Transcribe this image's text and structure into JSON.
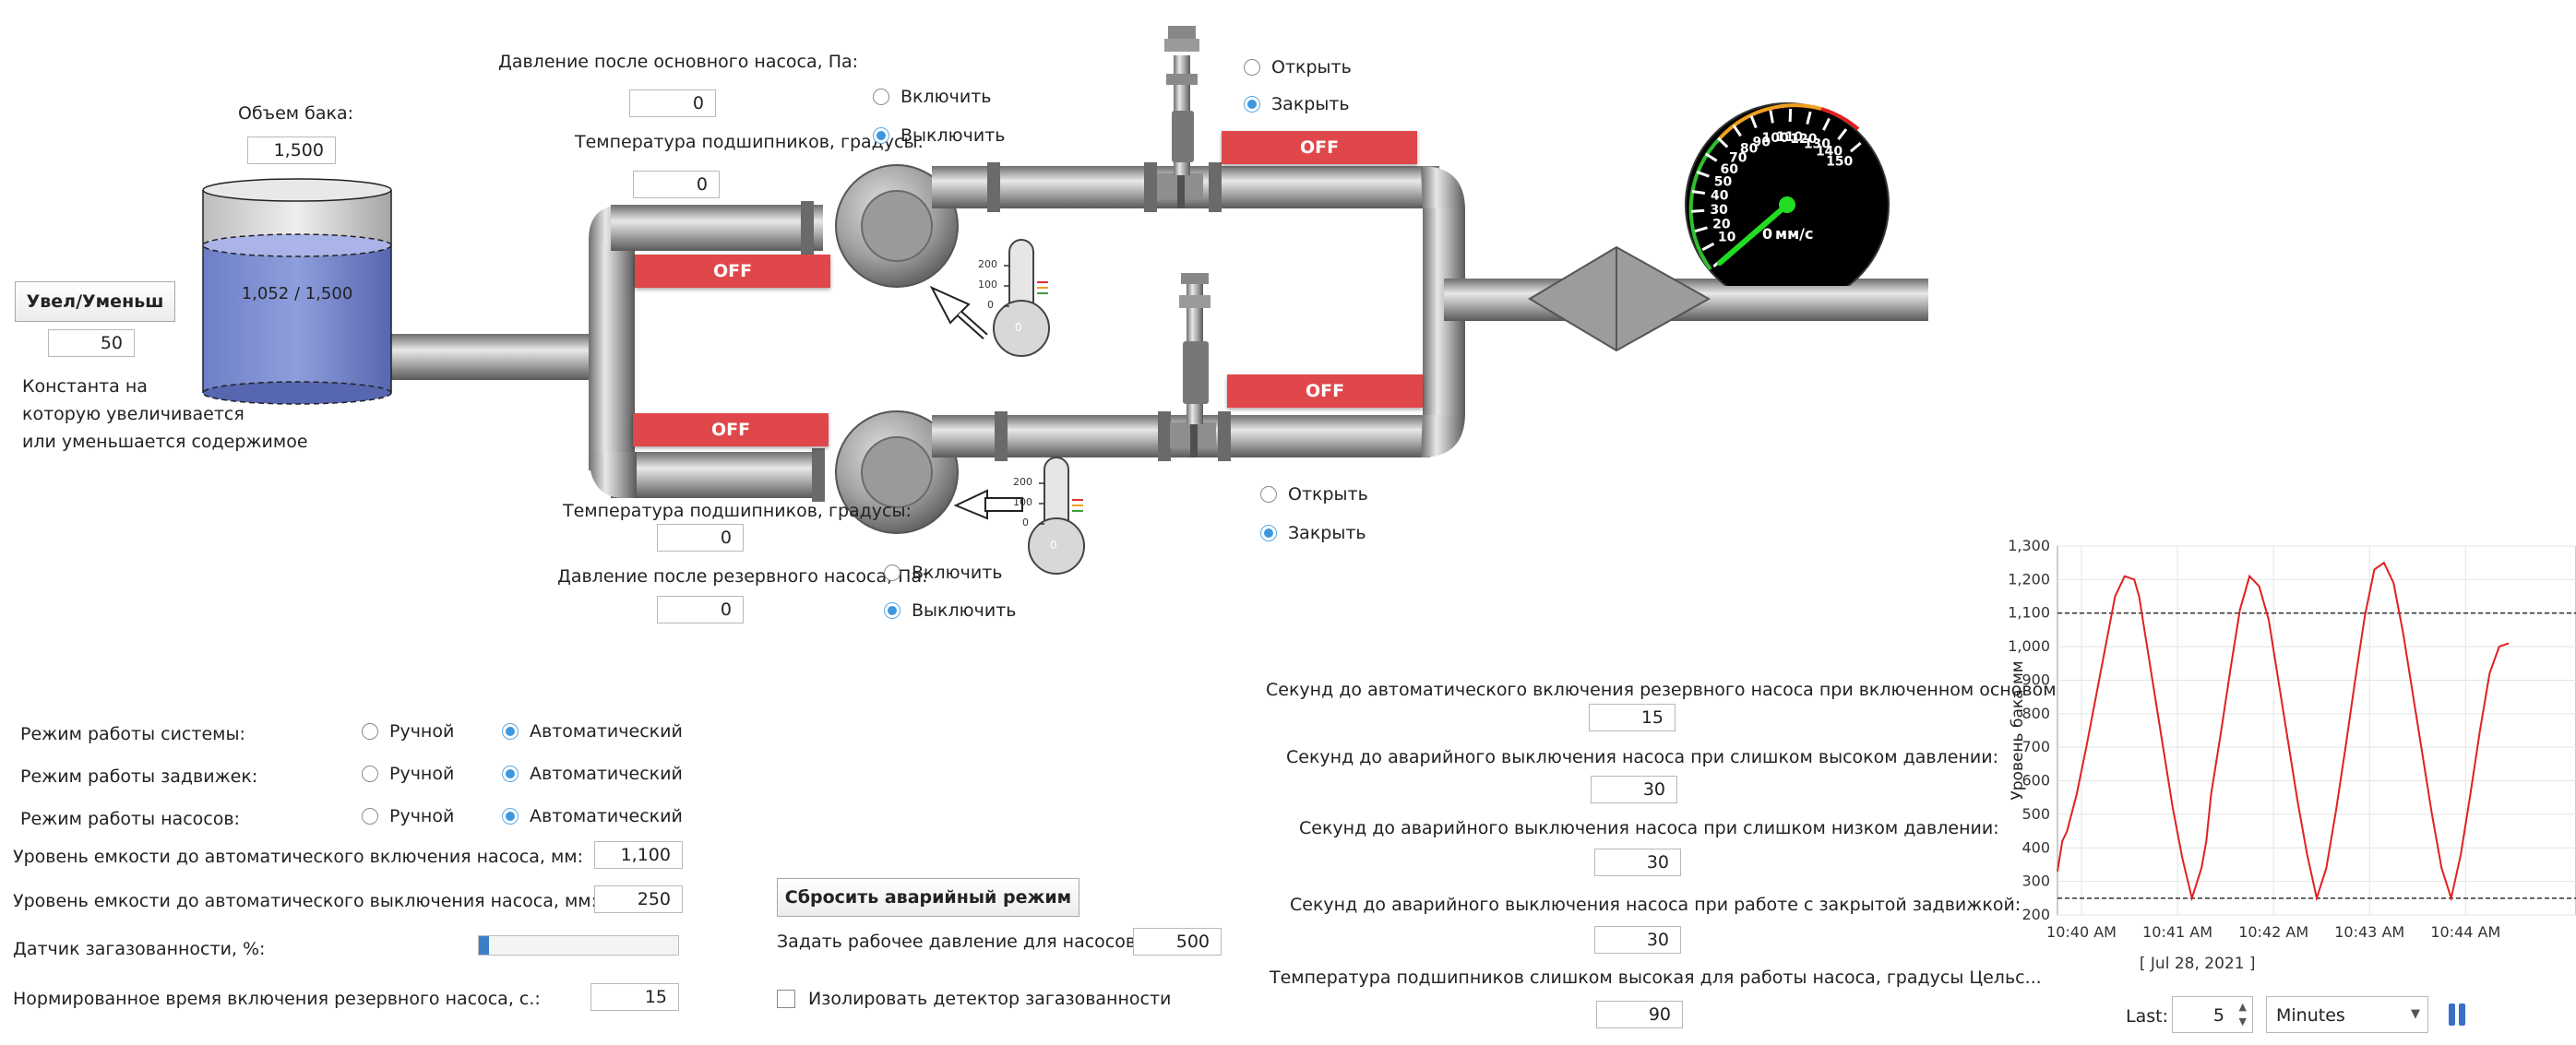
{
  "tank": {
    "volume_label": "Объем бака:",
    "volume_value": "1,500",
    "level_text": "1,052 / 1,500",
    "inc_dec_button": "Увел/Уменьш",
    "step_value": "50",
    "constant_desc_1": "Константа на",
    "constant_desc_2": "которую увеличивается",
    "constant_desc_3": "или уменьшается содержимое",
    "fill_fraction": 0.7
  },
  "main_pump": {
    "pressure_label": "Давление после основного насоса, Па:",
    "pressure_value": "0",
    "bearing_temp_label": "Температура подшипников, градусы:",
    "bearing_temp_value": "0",
    "on_label": "Включить",
    "off_label": "Выключить",
    "status": "OFF",
    "thermo_value": "0",
    "thermo_ticks": [
      "200",
      "100",
      "0"
    ]
  },
  "reserve_pump": {
    "pressure_label": "Давление после резервного насоса, Па:",
    "pressure_value": "0",
    "bearing_temp_label": "Температура подшипников, градусы:",
    "bearing_temp_value": "0",
    "on_label": "Включить",
    "off_label": "Выключить",
    "status": "OFF",
    "thermo_value": "0",
    "thermo_ticks": [
      "200",
      "100",
      "0"
    ]
  },
  "valve_top": {
    "open_label": "Открыть",
    "close_label": "Закрыть",
    "status": "OFF"
  },
  "valve_bottom": {
    "open_label": "Открыть",
    "close_label": "Закрыть",
    "status": "OFF"
  },
  "gauge": {
    "unit_label": "мм/с",
    "value_digit": "0",
    "scale_labels": [
      "10",
      "20",
      "30",
      "40",
      "50",
      "60",
      "70",
      "80",
      "90",
      "100",
      "110",
      "120",
      "130",
      "140",
      "150"
    ]
  },
  "modes": {
    "system_label": "Режим работы системы:",
    "valves_label": "Режим работы задвижек:",
    "pumps_label": "Режим работы насосов:",
    "manual": "Ручной",
    "auto": "Автоматический"
  },
  "settings": {
    "level_on_label": "Уровень емкости до автоматического включения насоса, мм:",
    "level_on_value": "1,100",
    "level_off_label": "Уровень емкости до автоматического выключения насоса, мм:",
    "level_off_value": "250",
    "gas_sensor_label": "Датчик загазованности, %:",
    "gas_sensor_fraction": 0.05,
    "reserve_time_label": "Нормированное время включения резервного насоса, с.:",
    "reserve_time_value": "15",
    "reset_button": "Сбросить аварийный режим",
    "work_pressure_label": "Задать рабочее давление для насосов, Па:",
    "work_pressure_value": "500",
    "isolate_label": "Изолировать детектор загазованности"
  },
  "timers": {
    "t1_label": "Секунд до автоматического включения резервного насоса при включенном основом",
    "t1_value": "15",
    "t2_label": "Секунд до аварийного выключения насоса при слишком высоком давлении:",
    "t2_value": "30",
    "t3_label": "Секунд до аварийного выключения насоса при слишком низком давлении:",
    "t3_value": "30",
    "t4_label": "Секунд до аварийного выключения насоса при работе с закрытой задвижкой:",
    "t4_value": "30",
    "t5_label": "Температура подшипников слишком высокая для работы насоса, градусы Цельс...",
    "t5_value": "90"
  },
  "chart_data": {
    "type": "line",
    "ylabel": "Уровень бака мм",
    "xlabel": "[ Jul 28, 2021 ]",
    "y_ticks": [
      "1,300",
      "1,200",
      "1,100",
      "1,000",
      "900",
      "800",
      "700",
      "600",
      "500",
      "400",
      "300",
      "200"
    ],
    "x_ticks": [
      "10:40 AM",
      "10:41 AM",
      "10:42 AM",
      "10:43 AM",
      "10:44 AM"
    ],
    "ylim": [
      200,
      1300
    ],
    "xlim": [
      0,
      5.4
    ],
    "threshold_lines": [
      1100,
      250
    ],
    "series": [
      {
        "color": "#e02020",
        "x": [
          0,
          0.05,
          0.1,
          0.2,
          0.3,
          0.4,
          0.5,
          0.6,
          0.7,
          0.8,
          0.85,
          0.9,
          1.0,
          1.1,
          1.2,
          1.3,
          1.4,
          1.5,
          1.55,
          1.6,
          1.7,
          1.8,
          1.9,
          2.0,
          2.1,
          2.2,
          2.3,
          2.4,
          2.5,
          2.6,
          2.7,
          2.8,
          2.9,
          3.0,
          3.1,
          3.2,
          3.3,
          3.4,
          3.5,
          3.6,
          3.7,
          3.8,
          3.9,
          4.0,
          4.1,
          4.2,
          4.3,
          4.4,
          4.5,
          4.6,
          4.7
        ],
        "y": [
          330,
          420,
          450,
          560,
          700,
          850,
          1000,
          1150,
          1210,
          1200,
          1150,
          1060,
          880,
          700,
          520,
          370,
          250,
          340,
          420,
          560,
          740,
          930,
          1110,
          1210,
          1180,
          1080,
          900,
          720,
          540,
          380,
          250,
          340,
          510,
          700,
          900,
          1090,
          1230,
          1250,
          1190,
          1040,
          860,
          680,
          500,
          340,
          250,
          380,
          560,
          750,
          920,
          1000,
          1010
        ]
      }
    ]
  },
  "chart_controls": {
    "last_label": "Last:",
    "last_value": "5",
    "unit_value": "Minutes"
  }
}
